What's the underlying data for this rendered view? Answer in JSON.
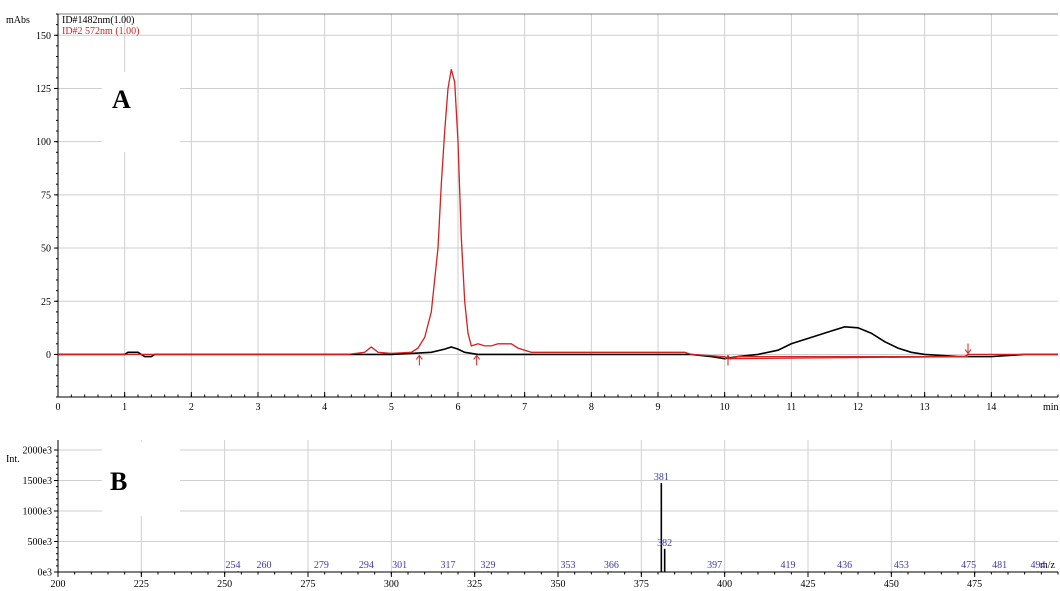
{
  "colors": {
    "series_black": "#000000",
    "series_red": "#d42020",
    "peak_label": "#3b3bb0",
    "grid": "#cfcfcf"
  },
  "chart_data": [
    {
      "panel": "A",
      "type": "line",
      "xlabel": "min",
      "ylabel": "mAbs",
      "xlim": [
        0,
        15
      ],
      "ylim": [
        -20,
        160
      ],
      "x_ticks": [
        0,
        1,
        2,
        3,
        4,
        5,
        6,
        7,
        8,
        9,
        10,
        11,
        12,
        13,
        14
      ],
      "y_ticks": [
        0,
        25,
        50,
        75,
        100,
        125,
        150
      ],
      "grid": true,
      "legend": "top-left",
      "series": [
        {
          "name": "ID#1482nm(1.00)",
          "color": "#000000",
          "x": [
            0,
            1.0,
            1.05,
            1.2,
            1.25,
            1.3,
            1.4,
            1.45,
            5.0,
            5.3,
            5.6,
            5.8,
            5.9,
            6.0,
            6.1,
            6.3,
            9.5,
            9.8,
            10.0,
            10.2,
            10.5,
            10.8,
            11.0,
            11.3,
            11.6,
            11.8,
            12.0,
            12.2,
            12.4,
            12.6,
            12.8,
            13.0,
            13.5,
            14.0,
            14.5,
            15.0
          ],
          "y": [
            0,
            0,
            1,
            1,
            0,
            -1,
            -1,
            0,
            0,
            0.5,
            1,
            2.5,
            3.5,
            2.5,
            1,
            0,
            0,
            -1,
            -2,
            -1,
            0,
            2,
            5,
            8,
            11,
            13,
            12.5,
            10,
            6,
            3,
            1,
            0,
            -1,
            -1,
            0,
            0
          ]
        },
        {
          "name": "ID#2 572nm (1.00)",
          "color": "#d42020",
          "x": [
            0,
            4.35,
            4.6,
            4.7,
            4.8,
            5.0,
            5.3,
            5.4,
            5.5,
            5.6,
            5.7,
            5.75,
            5.8,
            5.85,
            5.9,
            5.95,
            6.0,
            6.05,
            6.1,
            6.15,
            6.2,
            6.3,
            6.4,
            6.5,
            6.6,
            6.8,
            6.9,
            7.1,
            9.4,
            9.5,
            10.0,
            10.05,
            10.2,
            13.6,
            13.65,
            13.8,
            14.0,
            15.0
          ],
          "y": [
            0,
            0,
            1,
            3.5,
            1,
            0.5,
            1,
            3,
            8,
            20,
            50,
            80,
            105,
            125,
            134,
            128,
            100,
            55,
            25,
            10,
            4,
            5,
            4,
            4,
            5,
            5,
            3,
            1,
            1,
            0,
            -1,
            -2,
            -1,
            -1,
            0,
            0,
            0,
            0
          ]
        },
        {
          "name": "",
          "color": "#d42020",
          "x": [
            10.05,
            13.65
          ],
          "y": [
            -2,
            -1
          ]
        }
      ],
      "peak_markers": [
        5.42,
        6.28,
        10.05,
        13.65
      ]
    },
    {
      "panel": "B",
      "type": "bar",
      "xlabel": "m/z",
      "ylabel": "Int.",
      "xlim": [
        200,
        500
      ],
      "ylim": [
        0,
        2000
      ],
      "x_ticks": [
        200,
        225,
        250,
        275,
        300,
        325,
        350,
        375,
        400,
        425,
        450,
        475
      ],
      "y_ticks": [
        0,
        500,
        1000,
        1500,
        2000
      ],
      "y_tick_labels": [
        "0e3",
        "500e3",
        "1000e3",
        "1500e3",
        "2000e3"
      ],
      "grid": true,
      "peaks": [
        {
          "mz": 254,
          "label": "254",
          "value": 12
        },
        {
          "mz": 260,
          "label": "260",
          "value": 10
        },
        {
          "mz": 279,
          "label": "279",
          "value": 10
        },
        {
          "mz": 294,
          "label": "294",
          "value": 10
        },
        {
          "mz": 301,
          "label": "301",
          "value": 10
        },
        {
          "mz": 317,
          "label": "317",
          "value": 10
        },
        {
          "mz": 329,
          "label": "329",
          "value": 12
        },
        {
          "mz": 353,
          "label": "353",
          "value": 10
        },
        {
          "mz": 366,
          "label": "366",
          "value": 10
        },
        {
          "mz": 381,
          "label": "381",
          "value": 1460
        },
        {
          "mz": 382,
          "label": "382",
          "value": 380
        },
        {
          "mz": 397,
          "label": "397",
          "value": 10
        },
        {
          "mz": 419,
          "label": "419",
          "value": 10
        },
        {
          "mz": 436,
          "label": "436",
          "value": 10
        },
        {
          "mz": 453,
          "label": "453",
          "value": 10
        },
        {
          "mz": 475,
          "label": "475",
          "value": 10
        },
        {
          "mz": 481,
          "label": "481",
          "value": 10
        },
        {
          "mz": 494,
          "label": "494",
          "value": 10
        }
      ]
    }
  ],
  "panelA": {
    "letter": "A",
    "y_unit": "mAbs",
    "x_unit": "min",
    "legend": [
      "ID#1482nm(1.00)",
      "ID#2 572nm (1.00)"
    ]
  },
  "panelB": {
    "letter": "B",
    "y_unit": "Int.",
    "x_unit": "m/z"
  }
}
